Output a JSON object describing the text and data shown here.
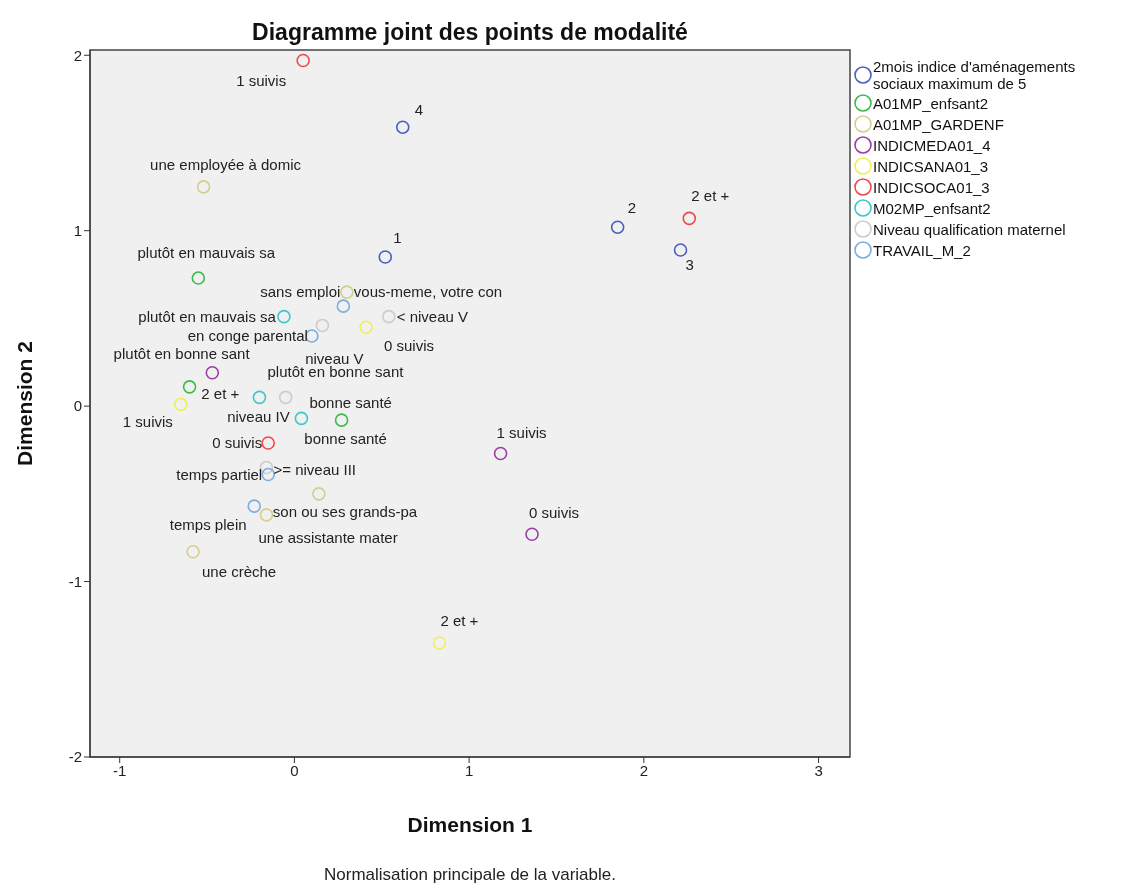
{
  "chart_data": {
    "type": "scatter",
    "title": "Diagramme joint des points de modalité",
    "xlabel": "Dimension 1",
    "ylabel": "Dimension 2",
    "annotations": [
      "Normalisation principale de la variable.",
      {
        "text": "4",
        "x": 0.62,
        "y": 1.59
      },
      {
        "text": "1",
        "x": 0.52,
        "y": 0.85
      },
      {
        "text": "2",
        "x": 1.85,
        "y": 1.02
      },
      {
        "text": "3",
        "x": 2.21,
        "y": 0.89
      },
      {
        "text": "plutôt en mauvais sa",
        "x": -0.55,
        "y": 0.73
      },
      {
        "text": "plutôt en bonne sant",
        "x": -0.6,
        "y": 0.11
      },
      {
        "text": "bonne santé",
        "x": 0.27,
        "y": -0.08
      },
      {
        "text": "une employée à domic",
        "x": -0.52,
        "y": 1.25
      },
      {
        "text": "vous-meme, votre con",
        "x": 0.3,
        "y": 0.65
      },
      {
        "text": "son ou ses grands-pa",
        "x": 0.14,
        "y": -0.5
      },
      {
        "text": "une assistante mater",
        "x": -0.16,
        "y": -0.62
      },
      {
        "text": "une crèche",
        "x": -0.58,
        "y": -0.83
      },
      {
        "text": "1 suivis",
        "x": 1.18,
        "y": -0.27
      },
      {
        "text": "0 suivis",
        "x": 1.36,
        "y": -0.73
      },
      {
        "text": "2 et +",
        "x": -0.47,
        "y": 0.19
      },
      {
        "text": "1 suivis",
        "x": -0.65,
        "y": 0.01
      },
      {
        "text": "0 suivis",
        "x": 0.41,
        "y": 0.45
      },
      {
        "text": "2 et +",
        "x": 0.83,
        "y": -1.35
      },
      {
        "text": "1 suivis",
        "x": 0.05,
        "y": 1.97
      },
      {
        "text": "2 et +",
        "x": 2.26,
        "y": 1.07
      },
      {
        "text": "0 suivis",
        "x": -0.15,
        "y": -0.21
      },
      {
        "text": "plutôt en mauvais sa",
        "x": -0.06,
        "y": 0.51
      },
      {
        "text": "plutôt en bonne sant",
        "x": -0.2,
        "y": 0.05
      },
      {
        "text": "bonne santé",
        "x": 0.04,
        "y": -0.07
      },
      {
        "text": "< niveau V",
        "x": 0.54,
        "y": 0.51
      },
      {
        "text": "niveau V",
        "x": 0.16,
        "y": 0.46
      },
      {
        "text": "niveau IV",
        "x": -0.05,
        "y": 0.05
      },
      {
        "text": ">= niveau III",
        "x": -0.16,
        "y": -0.35
      },
      {
        "text": "sans emploi",
        "x": 0.28,
        "y": 0.57
      },
      {
        "text": "en conge parental",
        "x": 0.1,
        "y": 0.4
      },
      {
        "text": "temps partiel",
        "x": -0.15,
        "y": -0.39
      },
      {
        "text": "temps plein",
        "x": -0.23,
        "y": -0.57
      }
    ],
    "xlim": [
      -1.17,
      3.18
    ],
    "ylim": [
      -2,
      2.03
    ],
    "xticks": [
      -1,
      0,
      1,
      2,
      3
    ],
    "yticks": [
      -2,
      -1,
      0,
      1,
      2
    ],
    "grid": false,
    "legend": "right",
    "marker": "circle",
    "series": [
      {
        "name": "2mois indice d'aménagements sociaux maximum de 5",
        "color": "#4a5fc1",
        "x": [
          0.62,
          0.52,
          1.85,
          2.21
        ],
        "values": [
          1.59,
          0.85,
          1.02,
          0.89
        ]
      },
      {
        "name": "A01MP_enfsant2",
        "color": "#3dbb4a",
        "x": [
          -0.55,
          -0.6,
          0.27
        ],
        "values": [
          0.73,
          0.11,
          -0.08
        ]
      },
      {
        "name": "A01MP_GARDENF",
        "color": "#d4cf8e",
        "x": [
          -0.52,
          0.3,
          0.14,
          -0.16,
          -0.58
        ],
        "values": [
          1.25,
          0.65,
          -0.5,
          -0.62,
          -0.83
        ]
      },
      {
        "name": "INDICMEDA01_4",
        "color": "#9b3fa0",
        "x": [
          1.18,
          1.36,
          -0.47
        ],
        "values": [
          -0.27,
          -0.73,
          0.19
        ]
      },
      {
        "name": "INDICSANA01_3",
        "color": "#f0ef5a",
        "x": [
          -0.65,
          0.41,
          0.83
        ],
        "values": [
          0.01,
          0.45,
          -1.35
        ]
      },
      {
        "name": "INDICSOCA01_3",
        "color": "#ef4a4a",
        "x": [
          0.05,
          2.26,
          -0.15
        ],
        "values": [
          1.97,
          1.07,
          -0.21
        ]
      },
      {
        "name": "M02MP_enfsant2",
        "color": "#3fc8c8",
        "x": [
          -0.06,
          -0.2,
          0.04
        ],
        "values": [
          0.51,
          0.05,
          -0.07
        ]
      },
      {
        "name": "Niveau qualification maternel",
        "color": "#cccccc",
        "x": [
          0.54,
          0.16,
          -0.05,
          -0.16
        ],
        "values": [
          0.51,
          0.46,
          0.05,
          -0.35
        ]
      },
      {
        "name": "TRAVAIL_M_2",
        "color": "#7aaee0",
        "x": [
          0.28,
          0.1,
          -0.15,
          -0.23
        ],
        "values": [
          0.57,
          0.4,
          -0.39,
          -0.57
        ]
      }
    ]
  }
}
